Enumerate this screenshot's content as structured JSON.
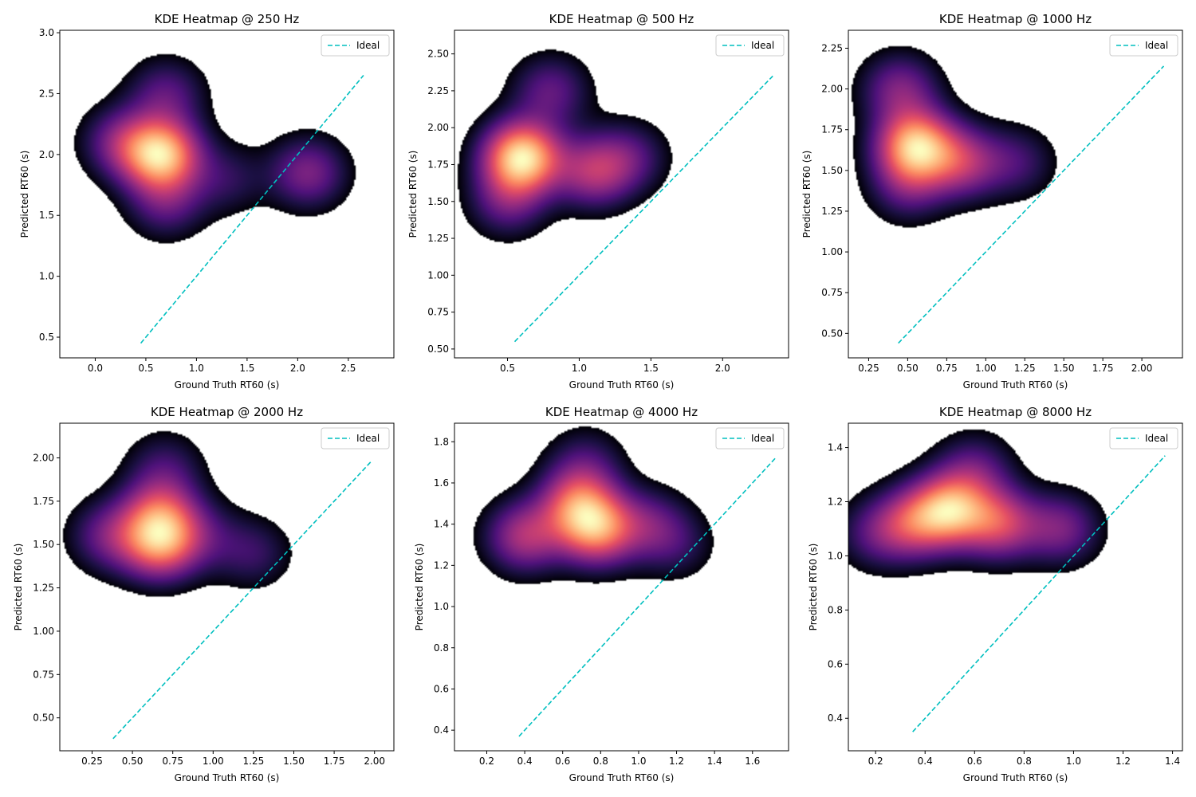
{
  "chart_data": [
    {
      "type": "heatmap",
      "title": "KDE Heatmap @ 250 Hz",
      "xlabel": "Ground Truth RT60 (s)",
      "ylabel": "Predicted RT60 (s)",
      "xlim": [
        -0.35,
        2.95
      ],
      "ylim": [
        0.33,
        3.02
      ],
      "xticks": [
        0.0,
        0.5,
        1.0,
        1.5,
        2.0,
        2.5
      ],
      "yticks": [
        0.5,
        1.0,
        1.5,
        2.0,
        2.5,
        3.0
      ],
      "tick_decimals": 1,
      "legend": {
        "label": "Ideal",
        "placement": "upper right"
      },
      "ideal_line": {
        "x": [
          0.45,
          2.65
        ],
        "y": [
          0.45,
          2.65
        ]
      },
      "kde_peaks": [
        {
          "x": 0.65,
          "y": 2.0,
          "weight": 1.0
        },
        {
          "x": 0.25,
          "y": 2.1,
          "weight": 0.35
        },
        {
          "x": 0.7,
          "y": 2.5,
          "weight": 0.3
        },
        {
          "x": 1.3,
          "y": 1.8,
          "weight": 0.2
        },
        {
          "x": 2.1,
          "y": 1.85,
          "weight": 0.4
        },
        {
          "x": 0.7,
          "y": 1.6,
          "weight": 0.3
        }
      ]
    },
    {
      "type": "heatmap",
      "title": "KDE Heatmap @ 500 Hz",
      "xlabel": "Ground Truth RT60 (s)",
      "ylabel": "Predicted RT60 (s)",
      "xlim": [
        0.13,
        2.46
      ],
      "ylim": [
        0.44,
        2.66
      ],
      "xticks": [
        0.5,
        1.0,
        1.5,
        2.0
      ],
      "yticks": [
        0.5,
        0.75,
        1.0,
        1.25,
        1.5,
        1.75,
        2.0,
        2.25,
        2.5
      ],
      "tick_decimals": 2,
      "tick_decimals_x": 1,
      "legend": {
        "label": "Ideal",
        "placement": "upper right"
      },
      "ideal_line": {
        "x": [
          0.55,
          2.35
        ],
        "y": [
          0.55,
          2.35
        ]
      },
      "kde_peaks": [
        {
          "x": 0.6,
          "y": 1.8,
          "weight": 1.0
        },
        {
          "x": 0.8,
          "y": 2.25,
          "weight": 0.3
        },
        {
          "x": 1.1,
          "y": 1.7,
          "weight": 0.45
        },
        {
          "x": 1.35,
          "y": 1.8,
          "weight": 0.25
        },
        {
          "x": 0.5,
          "y": 1.5,
          "weight": 0.3
        }
      ]
    },
    {
      "type": "heatmap",
      "title": "KDE Heatmap @ 1000 Hz",
      "xlabel": "Ground Truth RT60 (s)",
      "ylabel": "Predicted RT60 (s)",
      "xlim": [
        0.12,
        2.26
      ],
      "ylim": [
        0.35,
        2.36
      ],
      "xticks": [
        0.25,
        0.5,
        0.75,
        1.0,
        1.25,
        1.5,
        1.75,
        2.0
      ],
      "yticks": [
        0.5,
        0.75,
        1.0,
        1.25,
        1.5,
        1.75,
        2.0,
        2.25
      ],
      "tick_decimals": 2,
      "legend": {
        "label": "Ideal",
        "placement": "upper right"
      },
      "ideal_line": {
        "x": [
          0.44,
          2.14
        ],
        "y": [
          0.44,
          2.14
        ]
      },
      "kde_peaks": [
        {
          "x": 0.55,
          "y": 1.65,
          "weight": 1.0
        },
        {
          "x": 0.45,
          "y": 2.0,
          "weight": 0.4
        },
        {
          "x": 0.85,
          "y": 1.55,
          "weight": 0.5
        },
        {
          "x": 1.2,
          "y": 1.55,
          "weight": 0.25
        },
        {
          "x": 0.5,
          "y": 1.4,
          "weight": 0.3
        }
      ]
    },
    {
      "type": "heatmap",
      "title": "KDE Heatmap @ 2000 Hz",
      "xlabel": "Ground Truth RT60 (s)",
      "ylabel": "Predicted RT60 (s)",
      "xlim": [
        0.05,
        2.12
      ],
      "ylim": [
        0.31,
        2.2
      ],
      "xticks": [
        0.25,
        0.5,
        0.75,
        1.0,
        1.25,
        1.5,
        1.75,
        2.0
      ],
      "yticks": [
        0.5,
        0.75,
        1.0,
        1.25,
        1.5,
        1.75,
        2.0
      ],
      "tick_decimals": 2,
      "legend": {
        "label": "Ideal",
        "placement": "upper right"
      },
      "ideal_line": {
        "x": [
          0.38,
          1.98
        ],
        "y": [
          0.38,
          1.98
        ]
      },
      "kde_peaks": [
        {
          "x": 0.67,
          "y": 1.5,
          "weight": 1.0
        },
        {
          "x": 0.67,
          "y": 1.68,
          "weight": 0.75
        },
        {
          "x": 0.35,
          "y": 1.55,
          "weight": 0.45
        },
        {
          "x": 0.7,
          "y": 1.95,
          "weight": 0.3
        },
        {
          "x": 1.25,
          "y": 1.45,
          "weight": 0.3
        },
        {
          "x": 0.95,
          "y": 1.55,
          "weight": 0.25
        }
      ]
    },
    {
      "type": "heatmap",
      "title": "KDE Heatmap @ 4000 Hz",
      "xlabel": "Ground Truth RT60 (s)",
      "ylabel": "Predicted RT60 (s)",
      "xlim": [
        0.03,
        1.79
      ],
      "ylim": [
        0.3,
        1.89
      ],
      "xticks": [
        0.2,
        0.4,
        0.6,
        0.8,
        1.0,
        1.2,
        1.4,
        1.6
      ],
      "yticks": [
        0.4,
        0.6,
        0.8,
        1.0,
        1.2,
        1.4,
        1.6,
        1.8
      ],
      "tick_decimals": 1,
      "legend": {
        "label": "Ideal",
        "placement": "upper right"
      },
      "ideal_line": {
        "x": [
          0.37,
          1.72
        ],
        "y": [
          0.37,
          1.72
        ]
      },
      "kde_peaks": [
        {
          "x": 0.78,
          "y": 1.37,
          "weight": 1.0
        },
        {
          "x": 0.68,
          "y": 1.5,
          "weight": 0.85
        },
        {
          "x": 0.4,
          "y": 1.34,
          "weight": 0.7
        },
        {
          "x": 0.72,
          "y": 1.7,
          "weight": 0.3
        },
        {
          "x": 1.05,
          "y": 1.4,
          "weight": 0.4
        },
        {
          "x": 1.2,
          "y": 1.3,
          "weight": 0.25
        }
      ]
    },
    {
      "type": "heatmap",
      "title": "KDE Heatmap @ 8000 Hz",
      "xlabel": "Ground Truth RT60 (s)",
      "ylabel": "Predicted RT60 (s)",
      "xlim": [
        0.09,
        1.44
      ],
      "ylim": [
        0.28,
        1.49
      ],
      "xticks": [
        0.2,
        0.4,
        0.6,
        0.8,
        1.0,
        1.2,
        1.4
      ],
      "yticks": [
        0.4,
        0.6,
        0.8,
        1.0,
        1.2,
        1.4
      ],
      "tick_decimals": 1,
      "legend": {
        "label": "Ideal",
        "placement": "upper right"
      },
      "ideal_line": {
        "x": [
          0.35,
          1.37
        ],
        "y": [
          0.35,
          1.37
        ]
      },
      "kde_peaks": [
        {
          "x": 0.5,
          "y": 1.17,
          "weight": 1.0
        },
        {
          "x": 0.35,
          "y": 1.12,
          "weight": 0.6
        },
        {
          "x": 0.7,
          "y": 1.12,
          "weight": 0.7
        },
        {
          "x": 0.6,
          "y": 1.32,
          "weight": 0.35
        },
        {
          "x": 0.95,
          "y": 1.1,
          "weight": 0.45
        },
        {
          "x": 0.2,
          "y": 1.08,
          "weight": 0.3
        }
      ]
    }
  ],
  "colors": {
    "ideal_line": "#00bfbf",
    "axes": "#000000",
    "background": "#ffffff"
  },
  "colormap": "magma"
}
